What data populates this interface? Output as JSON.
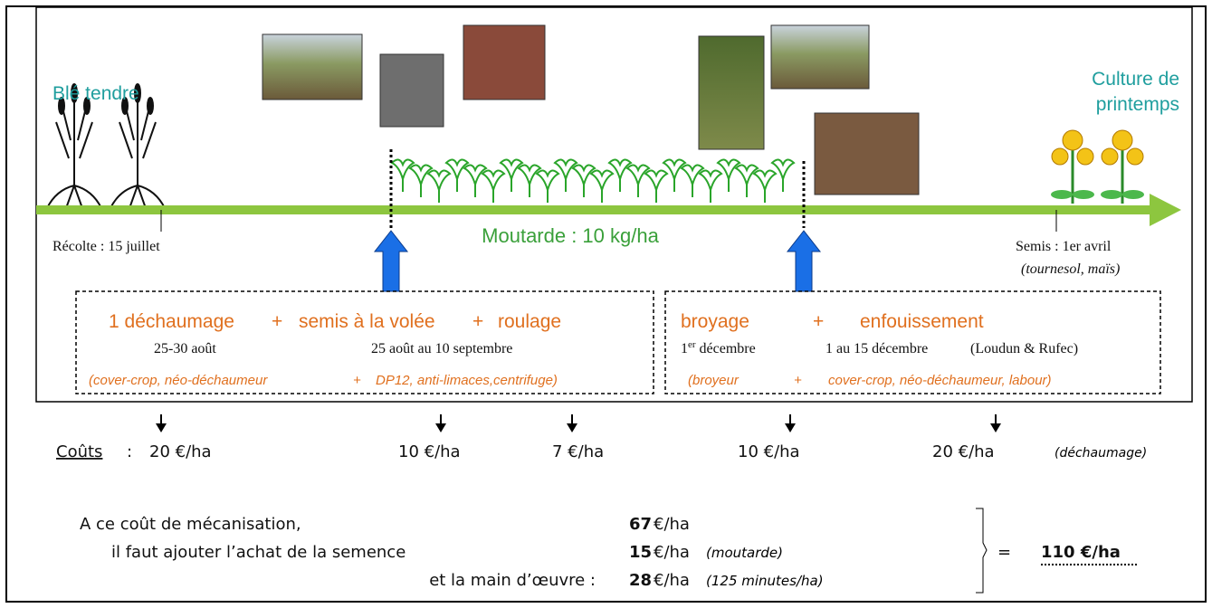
{
  "timeline": {
    "start_label": "Blé tendre",
    "end_label_lines": [
      "Culture de",
      "printemps"
    ],
    "center_label": "Moutarde : 10 kg/ha",
    "harvest": "Récolte : 15 juillet",
    "sowing": "Semis : 1er avril",
    "sowing_note": "(tournesol, maïs)"
  },
  "box1": {
    "title": [
      "1 déchaumage",
      "+",
      "semis à la volée",
      "+",
      "roulage"
    ],
    "dates": [
      "25-30 août",
      "25 août au 10 septembre"
    ],
    "tools": [
      "(cover-crop, néo-déchaumeur",
      "+",
      "DP12, anti-limaces,centrifuge)"
    ]
  },
  "box2": {
    "title": [
      "broyage",
      "+",
      "enfouissement"
    ],
    "date1": [
      "1",
      "er",
      " décembre"
    ],
    "date2": "1 au 15 décembre",
    "date2_note": "(Loudun & Rufec)",
    "tools": [
      "(broyeur",
      "+",
      "cover-crop, néo-déchaumeur, labour)"
    ]
  },
  "costs": {
    "label": "Coûts",
    "separator": ":",
    "items": [
      "20 €/ha",
      "10 €/ha",
      "7 €/ha",
      "10 €/ha",
      "20 €/ha"
    ],
    "last_note": "(déchaumage)"
  },
  "summary": {
    "rows": [
      {
        "text": "A ce coût de mécanisation,",
        "amount": "67",
        "unit": "€/ha"
      },
      {
        "text": "il faut ajouter l’achat de la semence",
        "amount": "15",
        "unit": "€/ha",
        "note": "(moutarde)"
      },
      {
        "text": "et la main d’œuvre :",
        "amount": "28",
        "unit": "€/ha",
        "note": "(125 minutes/ha)"
      }
    ],
    "equals": "=",
    "total": "110 €/ha"
  }
}
